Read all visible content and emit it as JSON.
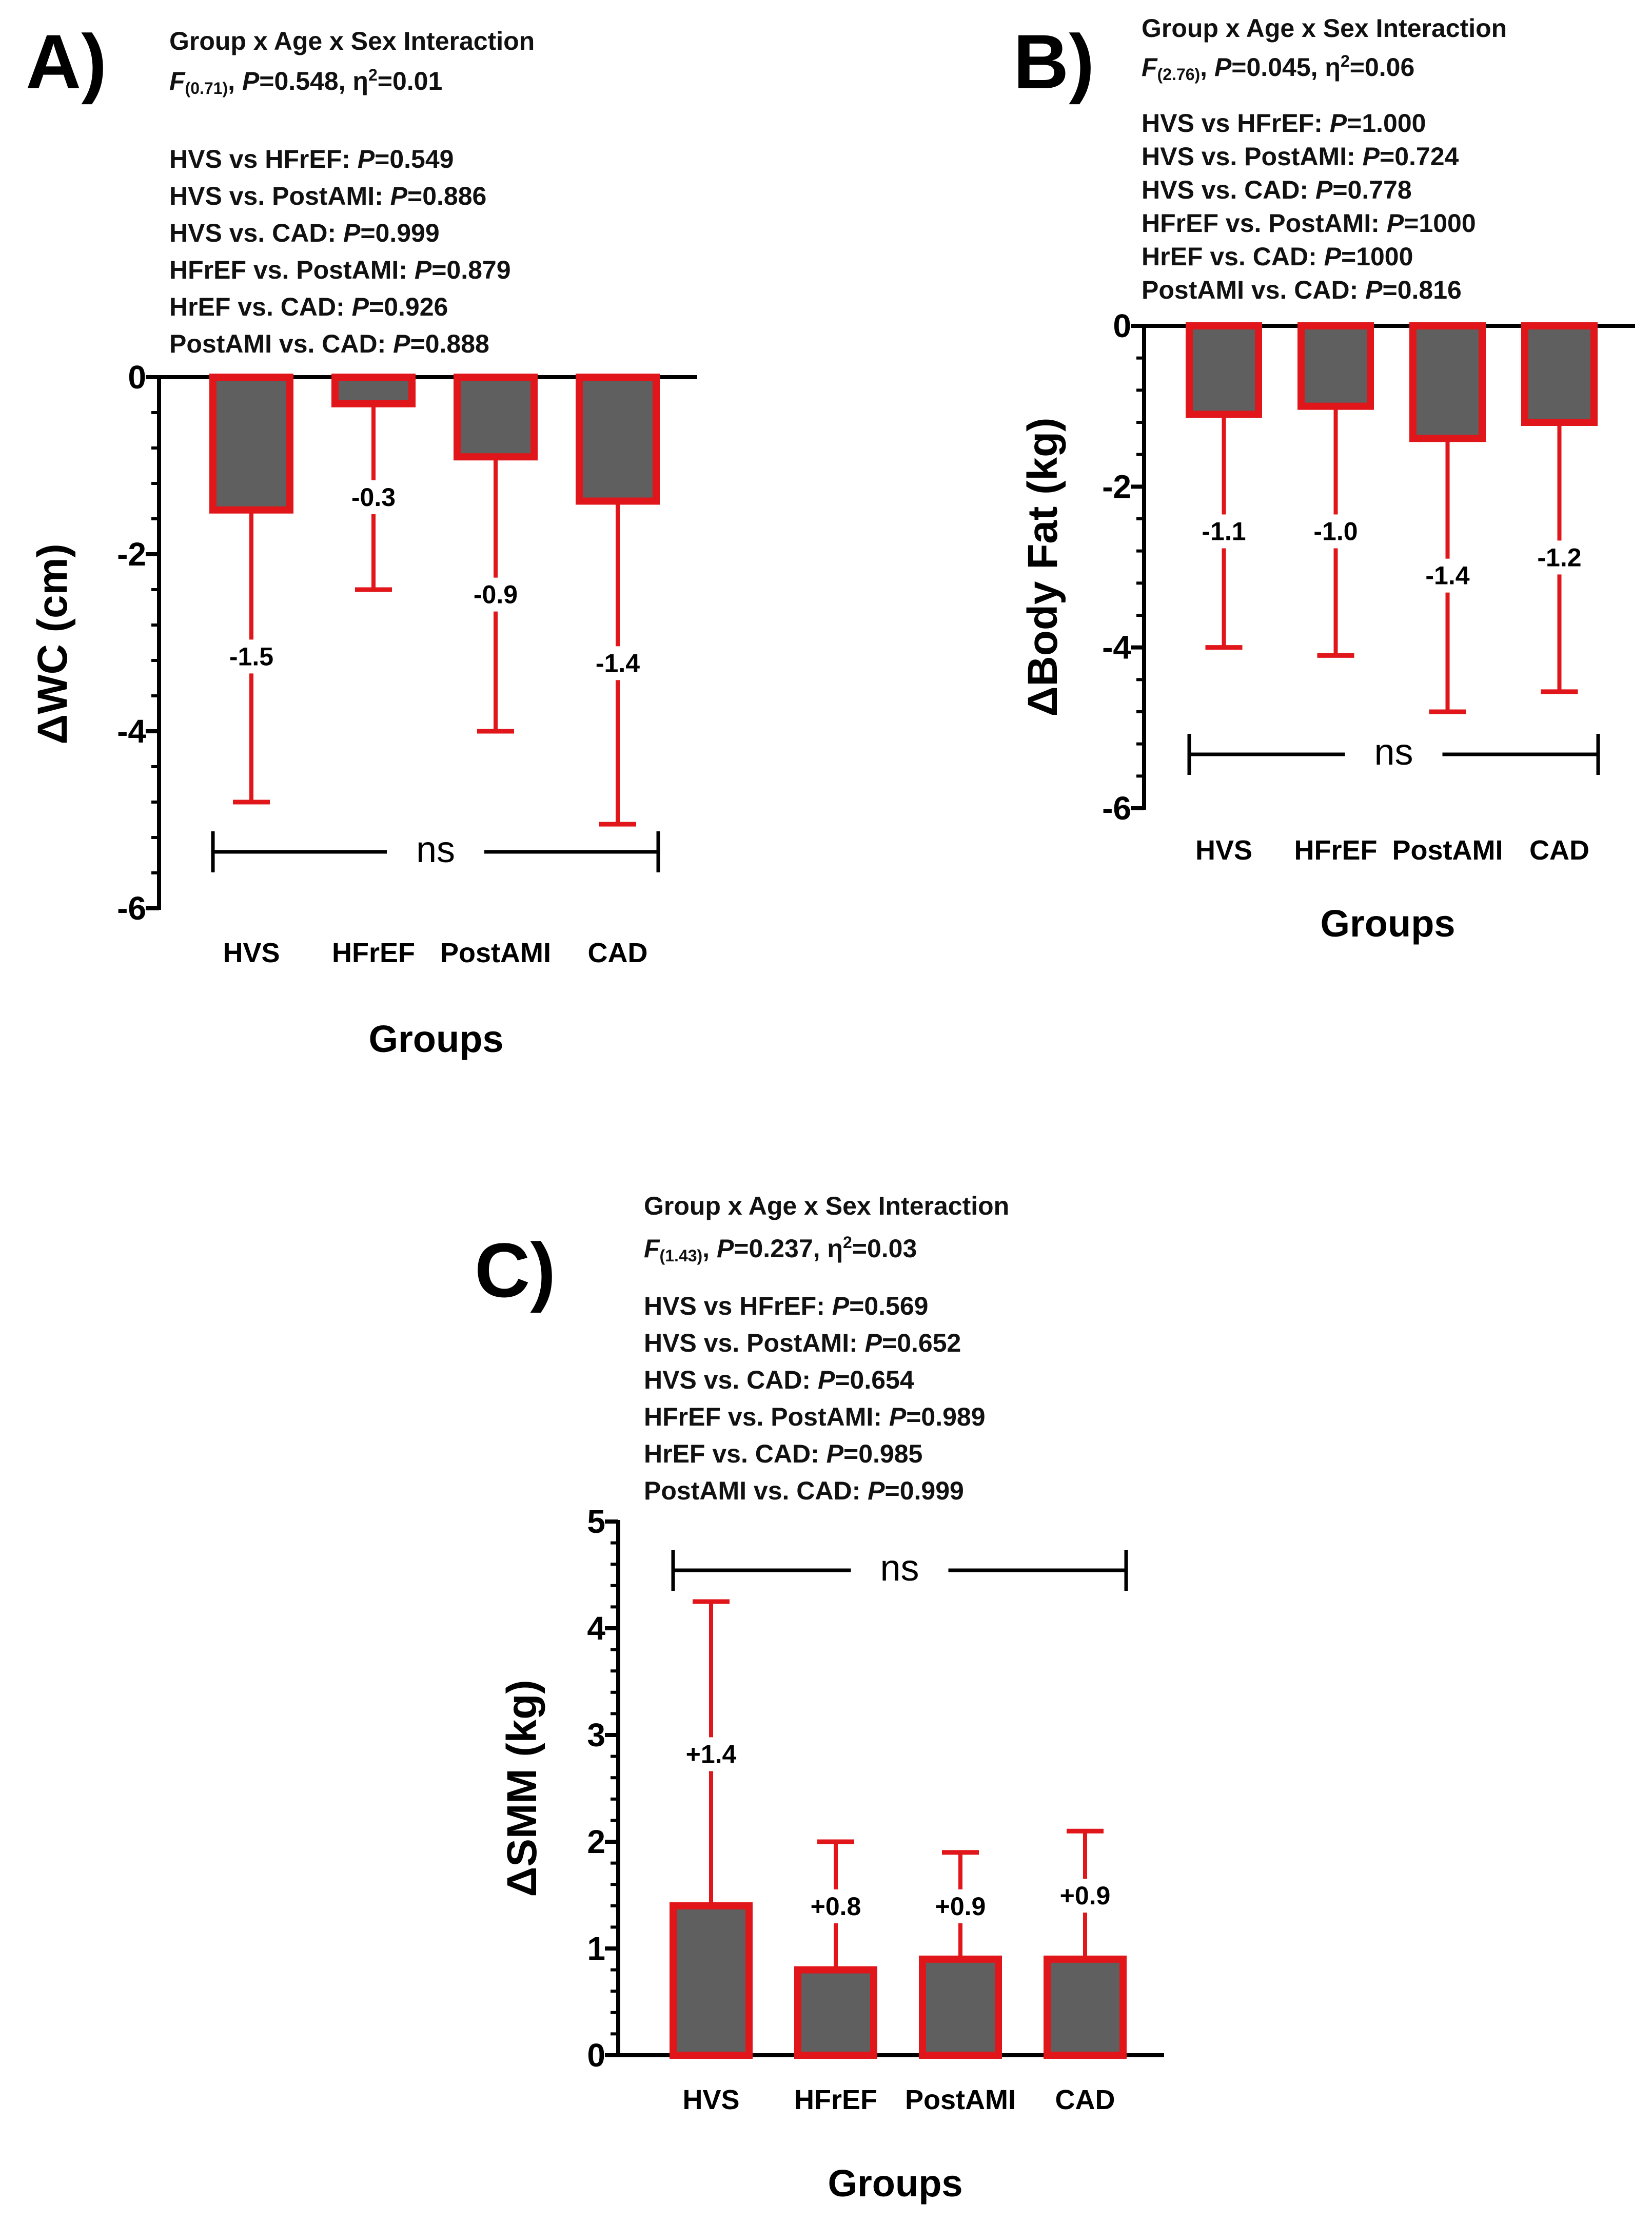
{
  "chart_data": [
    {
      "panel_label": "A)",
      "type": "bar",
      "title": "Group x Age x Sex Interaction",
      "stat": {
        "f_df": "(0.71)",
        "p": "0.548",
        "eta2": "0.01"
      },
      "comparisons": [
        {
          "text": "HVS vs HFrEF: ",
          "p": "0.549"
        },
        {
          "text": "HVS vs. PostAMI: ",
          "p": "0.886"
        },
        {
          "text": "HVS vs. CAD: ",
          "p": "0.999"
        },
        {
          "text": "HFrEF vs. PostAMI: ",
          "p": "0.879"
        },
        {
          "text": "HrEF vs. CAD: ",
          "p": "0.926"
        },
        {
          "text": "PostAMI vs. CAD: ",
          "p": "0.888"
        }
      ],
      "categories": [
        "HVS",
        "HFrEF",
        "PostAMI",
        "CAD"
      ],
      "values": [
        -1.5,
        -0.3,
        -0.9,
        -1.4
      ],
      "error": [
        3.3,
        2.1,
        3.1,
        3.65
      ],
      "value_labels": [
        "-1.5",
        "-0.3",
        "-0.9",
        "-1.4"
      ],
      "xlabel": "Groups",
      "ylabel": "ΔWC (cm)",
      "ylim": [
        -6,
        0
      ],
      "yticks": [
        "0",
        "-2",
        "-4",
        "-6"
      ],
      "significance": "ns"
    },
    {
      "panel_label": "B)",
      "type": "bar",
      "title": "Group x Age x Sex Interaction",
      "stat": {
        "f_df": "(2.76)",
        "p": "0.045",
        "eta2": "0.06"
      },
      "comparisons": [
        {
          "text": "HVS vs HFrEF: ",
          "p": "1.000"
        },
        {
          "text": "HVS vs. PostAMI: ",
          "p": "0.724"
        },
        {
          "text": "HVS vs. CAD: ",
          "p": "0.778"
        },
        {
          "text": "HFrEF vs. PostAMI: ",
          "p": "1000"
        },
        {
          "text": "HrEF vs. CAD: ",
          "p": "1000"
        },
        {
          "text": "PostAMI vs. CAD: ",
          "p": "0.816"
        }
      ],
      "categories": [
        "HVS",
        "HFrEF",
        "PostAMI",
        "CAD"
      ],
      "values": [
        -1.1,
        -1.0,
        -1.4,
        -1.2
      ],
      "error": [
        2.9,
        3.1,
        3.4,
        3.35
      ],
      "value_labels": [
        "-1.1",
        "-1.0",
        "-1.4",
        "-1.2"
      ],
      "xlabel": "Groups",
      "ylabel": "ΔBody Fat (kg)",
      "ylim": [
        -6,
        0
      ],
      "yticks": [
        "0",
        "-2",
        "-4",
        "-6"
      ],
      "significance": "ns"
    },
    {
      "panel_label": "C)",
      "type": "bar",
      "title": "Group x Age x Sex Interaction",
      "stat": {
        "f_df": "(1.43)",
        "p": "0.237",
        "eta2": "0.03"
      },
      "comparisons": [
        {
          "text": "HVS vs HFrEF: ",
          "p": "0.569"
        },
        {
          "text": "HVS vs. PostAMI: ",
          "p": "0.652"
        },
        {
          "text": "HVS vs. CAD: ",
          "p": "0.654"
        },
        {
          "text": "HFrEF vs. PostAMI: ",
          "p": "0.989"
        },
        {
          "text": "HrEF vs. CAD: ",
          "p": "0.985"
        },
        {
          "text": "PostAMI vs. CAD: ",
          "p": "0.999"
        }
      ],
      "categories": [
        "HVS",
        "HFrEF",
        "PostAMI",
        "CAD"
      ],
      "values": [
        1.4,
        0.8,
        0.9,
        0.9
      ],
      "error": [
        2.85,
        1.2,
        1.0,
        1.2
      ],
      "value_labels": [
        "+1.4",
        "+0.8",
        "+0.9",
        "+0.9"
      ],
      "xlabel": "Groups",
      "ylabel": "ΔSMM (kg)",
      "ylim": [
        0,
        5
      ],
      "yticks": [
        "0",
        "1",
        "2",
        "3",
        "4",
        "5"
      ],
      "significance": "ns"
    }
  ],
  "colors": {
    "bar_fill": "#5f5f5f",
    "bar_edge": "#e0161b",
    "axis": "#000000"
  },
  "labels": {
    "F": "F",
    "P": "P",
    "eta": "η",
    "two": "2"
  }
}
